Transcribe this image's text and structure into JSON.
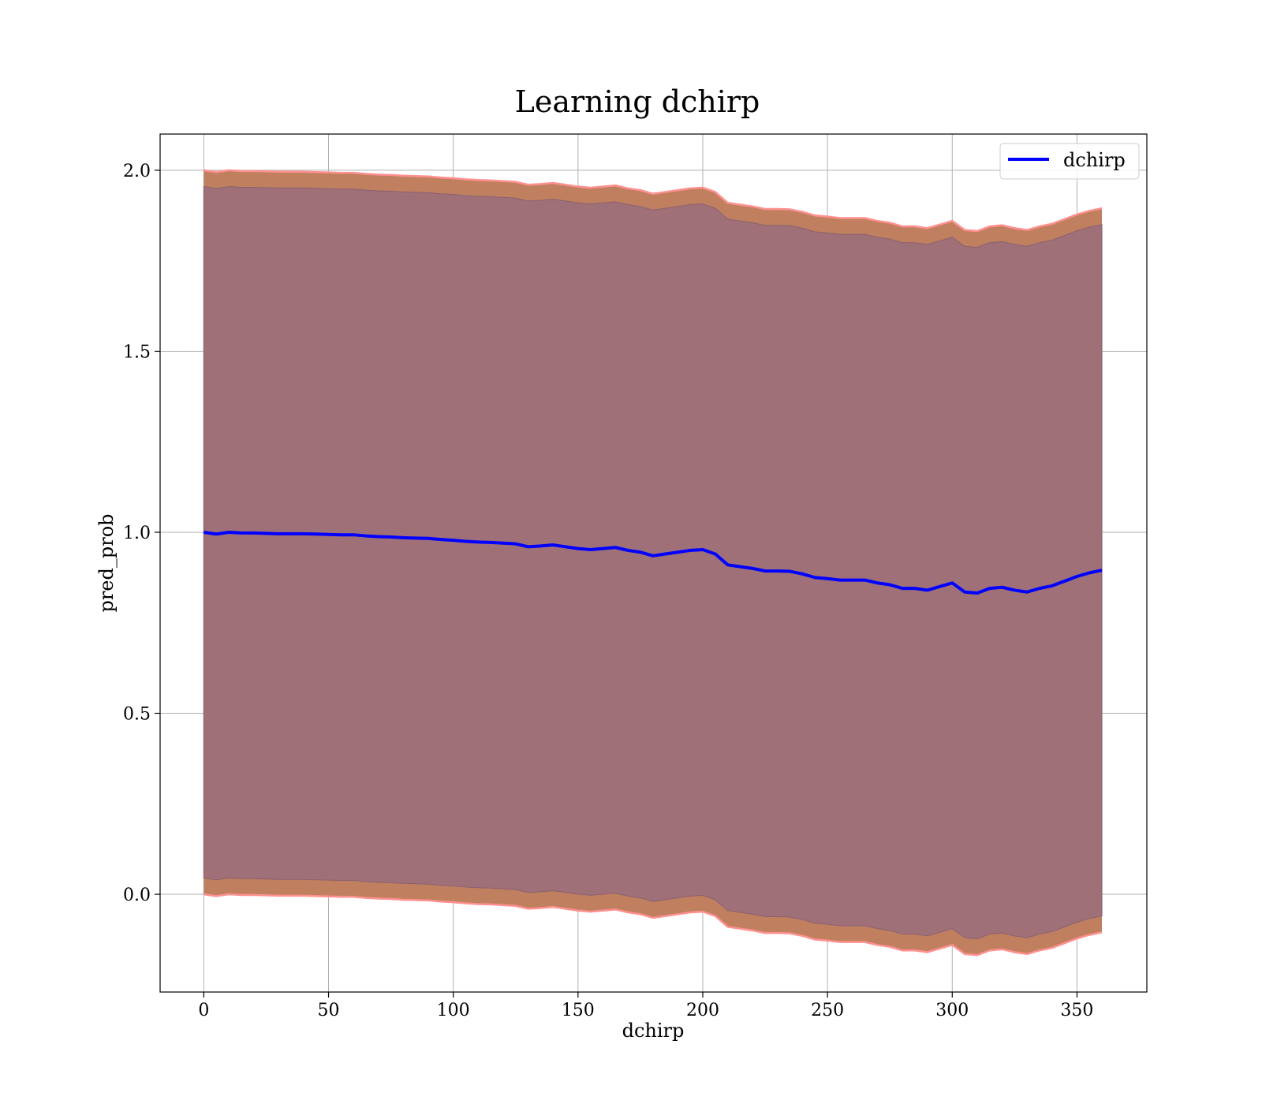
{
  "chart_data": {
    "type": "line",
    "title": "Learning dchirp",
    "xlabel": "dchirp",
    "ylabel": "pred_prob",
    "xlim": [
      -17.5,
      378
    ],
    "ylim": [
      -0.27,
      2.1
    ],
    "xticks": [
      0,
      50,
      100,
      150,
      200,
      250,
      300,
      350
    ],
    "yticks": [
      0.0,
      0.5,
      1.0,
      1.5,
      2.0
    ],
    "xtick_labels": [
      "0",
      "50",
      "100",
      "150",
      "200",
      "250",
      "300",
      "350"
    ],
    "ytick_labels": [
      "0.0",
      "0.5",
      "1.0",
      "1.5",
      "2.0"
    ],
    "grid": true,
    "legend": {
      "position": "top-right",
      "entries": [
        "dchirp"
      ]
    },
    "colors": {
      "line": "#0000ff",
      "outer_band": "#c0805f",
      "inner_band": "#a07079",
      "band_edge": "#ff9090",
      "grid": "#b0b0b0"
    },
    "series": [
      {
        "name": "dchirp",
        "x": [
          0,
          5,
          10,
          15,
          20,
          25,
          30,
          35,
          40,
          45,
          50,
          55,
          60,
          65,
          70,
          75,
          80,
          85,
          90,
          95,
          100,
          105,
          110,
          115,
          120,
          125,
          130,
          135,
          140,
          145,
          150,
          155,
          160,
          165,
          170,
          175,
          180,
          185,
          190,
          195,
          200,
          205,
          210,
          215,
          220,
          225,
          230,
          235,
          240,
          245,
          250,
          255,
          260,
          265,
          270,
          275,
          280,
          285,
          290,
          295,
          300,
          305,
          310,
          315,
          320,
          325,
          330,
          335,
          340,
          345,
          350,
          355,
          360
        ],
        "y": [
          1.0,
          0.995,
          1.0,
          0.998,
          0.998,
          0.997,
          0.996,
          0.996,
          0.996,
          0.995,
          0.994,
          0.993,
          0.993,
          0.99,
          0.988,
          0.987,
          0.985,
          0.984,
          0.983,
          0.98,
          0.978,
          0.975,
          0.973,
          0.972,
          0.97,
          0.968,
          0.96,
          0.962,
          0.965,
          0.96,
          0.955,
          0.952,
          0.955,
          0.958,
          0.95,
          0.945,
          0.935,
          0.94,
          0.945,
          0.95,
          0.952,
          0.94,
          0.91,
          0.905,
          0.9,
          0.893,
          0.893,
          0.892,
          0.885,
          0.875,
          0.872,
          0.868,
          0.868,
          0.868,
          0.86,
          0.855,
          0.845,
          0.845,
          0.84,
          0.85,
          0.86,
          0.835,
          0.832,
          0.845,
          0.848,
          0.84,
          0.835,
          0.845,
          0.852,
          0.865,
          0.878,
          0.888,
          0.895
        ]
      }
    ],
    "band_outer_upper": [
      2.0,
      1.995,
      2.0,
      1.998,
      1.998,
      1.997,
      1.996,
      1.996,
      1.996,
      1.995,
      1.994,
      1.993,
      1.993,
      1.99,
      1.988,
      1.987,
      1.985,
      1.984,
      1.983,
      1.98,
      1.978,
      1.975,
      1.973,
      1.972,
      1.97,
      1.968,
      1.96,
      1.962,
      1.965,
      1.96,
      1.955,
      1.952,
      1.955,
      1.958,
      1.95,
      1.945,
      1.935,
      1.94,
      1.945,
      1.95,
      1.952,
      1.94,
      1.91,
      1.905,
      1.9,
      1.893,
      1.893,
      1.892,
      1.885,
      1.875,
      1.872,
      1.868,
      1.868,
      1.868,
      1.86,
      1.855,
      1.845,
      1.845,
      1.84,
      1.85,
      1.86,
      1.835,
      1.832,
      1.845,
      1.848,
      1.84,
      1.835,
      1.845,
      1.852,
      1.865,
      1.878,
      1.888,
      1.895
    ],
    "band_outer_lower": [
      0.0,
      -0.005,
      0.0,
      -0.002,
      -0.002,
      -0.003,
      -0.004,
      -0.004,
      -0.004,
      -0.005,
      -0.006,
      -0.007,
      -0.007,
      -0.01,
      -0.012,
      -0.013,
      -0.015,
      -0.016,
      -0.017,
      -0.02,
      -0.022,
      -0.025,
      -0.027,
      -0.028,
      -0.03,
      -0.032,
      -0.04,
      -0.038,
      -0.035,
      -0.04,
      -0.045,
      -0.048,
      -0.045,
      -0.042,
      -0.05,
      -0.055,
      -0.065,
      -0.06,
      -0.055,
      -0.05,
      -0.048,
      -0.06,
      -0.09,
      -0.095,
      -0.1,
      -0.107,
      -0.107,
      -0.108,
      -0.115,
      -0.125,
      -0.128,
      -0.132,
      -0.132,
      -0.132,
      -0.14,
      -0.145,
      -0.155,
      -0.155,
      -0.16,
      -0.15,
      -0.14,
      -0.165,
      -0.168,
      -0.155,
      -0.152,
      -0.16,
      -0.165,
      -0.155,
      -0.148,
      -0.135,
      -0.122,
      -0.112,
      -0.105
    ],
    "band_inner_upper": [
      1.955,
      1.95,
      1.955,
      1.953,
      1.953,
      1.952,
      1.951,
      1.951,
      1.951,
      1.95,
      1.949,
      1.948,
      1.948,
      1.945,
      1.943,
      1.942,
      1.94,
      1.939,
      1.938,
      1.935,
      1.933,
      1.93,
      1.928,
      1.927,
      1.925,
      1.923,
      1.915,
      1.917,
      1.92,
      1.915,
      1.91,
      1.907,
      1.91,
      1.913,
      1.905,
      1.9,
      1.89,
      1.895,
      1.9,
      1.905,
      1.907,
      1.895,
      1.865,
      1.86,
      1.855,
      1.848,
      1.848,
      1.847,
      1.84,
      1.83,
      1.827,
      1.823,
      1.823,
      1.823,
      1.815,
      1.81,
      1.8,
      1.8,
      1.795,
      1.805,
      1.815,
      1.79,
      1.787,
      1.8,
      1.803,
      1.795,
      1.79,
      1.8,
      1.807,
      1.82,
      1.833,
      1.843,
      1.85
    ],
    "band_inner_lower": [
      0.045,
      0.04,
      0.045,
      0.043,
      0.043,
      0.042,
      0.041,
      0.041,
      0.041,
      0.04,
      0.039,
      0.038,
      0.038,
      0.035,
      0.033,
      0.032,
      0.03,
      0.029,
      0.028,
      0.025,
      0.023,
      0.02,
      0.018,
      0.017,
      0.015,
      0.013,
      0.005,
      0.007,
      0.01,
      0.005,
      0.0,
      -0.003,
      0.0,
      0.003,
      -0.005,
      -0.01,
      -0.02,
      -0.015,
      -0.01,
      -0.005,
      -0.003,
      -0.015,
      -0.045,
      -0.05,
      -0.055,
      -0.062,
      -0.062,
      -0.063,
      -0.07,
      -0.08,
      -0.083,
      -0.087,
      -0.087,
      -0.087,
      -0.095,
      -0.1,
      -0.11,
      -0.11,
      -0.115,
      -0.105,
      -0.095,
      -0.12,
      -0.123,
      -0.11,
      -0.107,
      -0.115,
      -0.12,
      -0.11,
      -0.103,
      -0.09,
      -0.077,
      -0.067,
      -0.06
    ]
  }
}
